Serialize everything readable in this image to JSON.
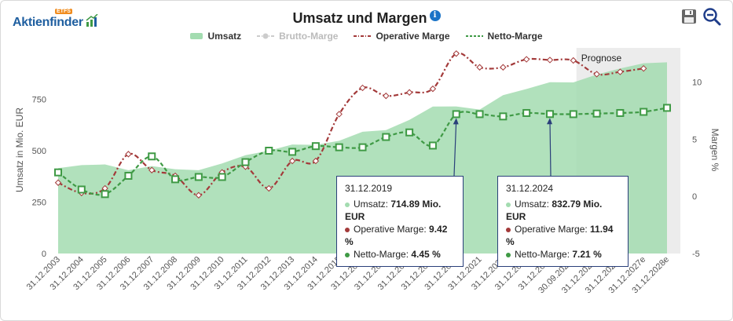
{
  "header": {
    "logo_text": "Aktienfinder",
    "logo_badge": "ETFS",
    "title": "Umsatz und Margen",
    "info_icon": "i"
  },
  "legend": [
    {
      "label": "Umsatz",
      "color": "#a3dcb0",
      "style": "area",
      "hidden": false
    },
    {
      "label": "Brutto-Marge",
      "color": "#cccccc",
      "style": "dash-dot",
      "hidden": true
    },
    {
      "label": "Operative Marge",
      "color": "#a33a3a",
      "style": "dash-dot",
      "hidden": false
    },
    {
      "label": "Netto-Marge",
      "color": "#3f9a45",
      "style": "dash",
      "hidden": false
    }
  ],
  "tooltips": [
    {
      "date": "31.12.2019",
      "rows": [
        {
          "label": "Umsatz",
          "value": "714.89 Mio. EUR",
          "color": "#a3dcb0"
        },
        {
          "label": "Operative Marge",
          "value": "9.42 %",
          "color": "#a33a3a"
        },
        {
          "label": "Netto-Marge",
          "value": "4.45 %",
          "color": "#3f9a45"
        }
      ]
    },
    {
      "date": "31.12.2024",
      "rows": [
        {
          "label": "Umsatz",
          "value": "832.79 Mio. EUR",
          "color": "#a3dcb0"
        },
        {
          "label": "Operative Marge",
          "value": "11.94 %",
          "color": "#a33a3a"
        },
        {
          "label": "Netto-Marge",
          "value": "7.21 %",
          "color": "#3f9a45"
        }
      ]
    }
  ],
  "chart_data": {
    "type": "area",
    "categories": [
      "31.12.2003",
      "31.12.2004",
      "31.12.2005",
      "31.12.2006",
      "31.12.2007",
      "31.12.2008",
      "31.12.2009",
      "31.12.2010",
      "31.12.2011",
      "31.12.2012",
      "31.12.2013",
      "31.12.2014",
      "31.12.2015",
      "31.12.2016",
      "31.12.2017",
      "31.12.2018",
      "31.12.2019",
      "31.12.2020",
      "31.12.2021",
      "31.12.2022",
      "31.12.2023",
      "31.12.2024",
      "30.09.2025a",
      "31.12.2025e",
      "31.12.2026e",
      "31.12.2027e",
      "31.12.2028e"
    ],
    "xlabel": "",
    "ylabel": "Umsatz in Mio. EUR",
    "y2label": "Margen %",
    "ylim": [
      0,
      1000
    ],
    "y_ticks": [
      0,
      250,
      500,
      750
    ],
    "y2lim": [
      -5,
      13
    ],
    "y2_ticks": [
      -5,
      0,
      5,
      10
    ],
    "forecast_label": "Prognose",
    "forecast_start_index": 22.5,
    "series": [
      {
        "name": "Umsatz",
        "axis": "left",
        "kind": "area",
        "values": [
          415,
          430,
          433,
          405,
          425,
          410,
          405,
          438,
          478,
          500,
          530,
          528,
          548,
          592,
          600,
          650,
          714.89,
          715,
          700,
          770,
          800,
          832.79,
          832,
          870,
          900,
          925,
          930
        ]
      },
      {
        "name": "Operative Marge",
        "axis": "right",
        "kind": "line",
        "values": [
          1.2,
          0.3,
          0.7,
          3.7,
          2.3,
          1.8,
          0.1,
          2.1,
          2.6,
          0.7,
          3.1,
          3.1,
          7.2,
          9.5,
          8.8,
          9.1,
          9.42,
          12.5,
          11.3,
          11.3,
          12.0,
          11.94,
          11.9,
          10.7,
          10.9,
          11.2,
          null
        ]
      },
      {
        "name": "Netto-Marge",
        "axis": "right",
        "kind": "line",
        "values": [
          2.1,
          0.6,
          0.2,
          1.8,
          3.5,
          1.5,
          1.7,
          1.7,
          3.0,
          4.0,
          3.9,
          4.4,
          4.3,
          4.3,
          5.2,
          5.6,
          4.45,
          7.2,
          7.2,
          7.0,
          7.3,
          7.21,
          7.2,
          7.25,
          7.3,
          7.4,
          7.75
        ]
      }
    ]
  }
}
